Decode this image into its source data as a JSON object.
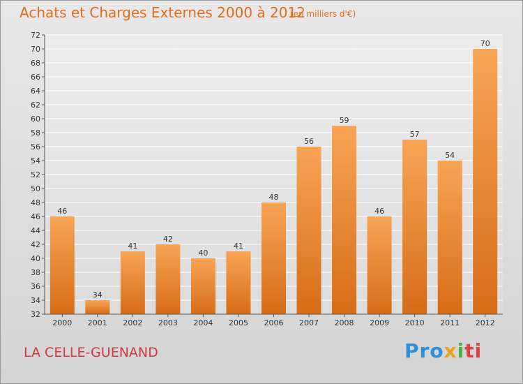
{
  "header": {
    "title": "Achats et Charges Externes 2000 à 2012",
    "unit": "(en milliers d'€)"
  },
  "footer": {
    "commune": "LA CELLE-GUENAND",
    "logo": "Proxiti",
    "logo_parts": [
      "Pro",
      "x",
      "i",
      "ti"
    ]
  },
  "colors": {
    "bar_top": "#f7a555",
    "bar_bottom": "#d86c17",
    "title": "#e46c1c",
    "commune": "#d0393e"
  },
  "chart_data": {
    "type": "bar",
    "title": "Achats et Charges Externes 2000 à 2012",
    "subtitle": "(en milliers d'€)",
    "categories": [
      "2000",
      "2001",
      "2002",
      "2003",
      "2004",
      "2005",
      "2006",
      "2007",
      "2008",
      "2009",
      "2010",
      "2011",
      "2012"
    ],
    "values": [
      46,
      34,
      41,
      42,
      40,
      41,
      48,
      56,
      59,
      46,
      57,
      54,
      70
    ],
    "ylim": [
      32,
      72
    ],
    "yticks": [
      32,
      34,
      36,
      38,
      40,
      42,
      44,
      46,
      48,
      50,
      52,
      54,
      56,
      58,
      60,
      62,
      64,
      66,
      68,
      70,
      72
    ],
    "grid": true,
    "data_labels": true
  }
}
